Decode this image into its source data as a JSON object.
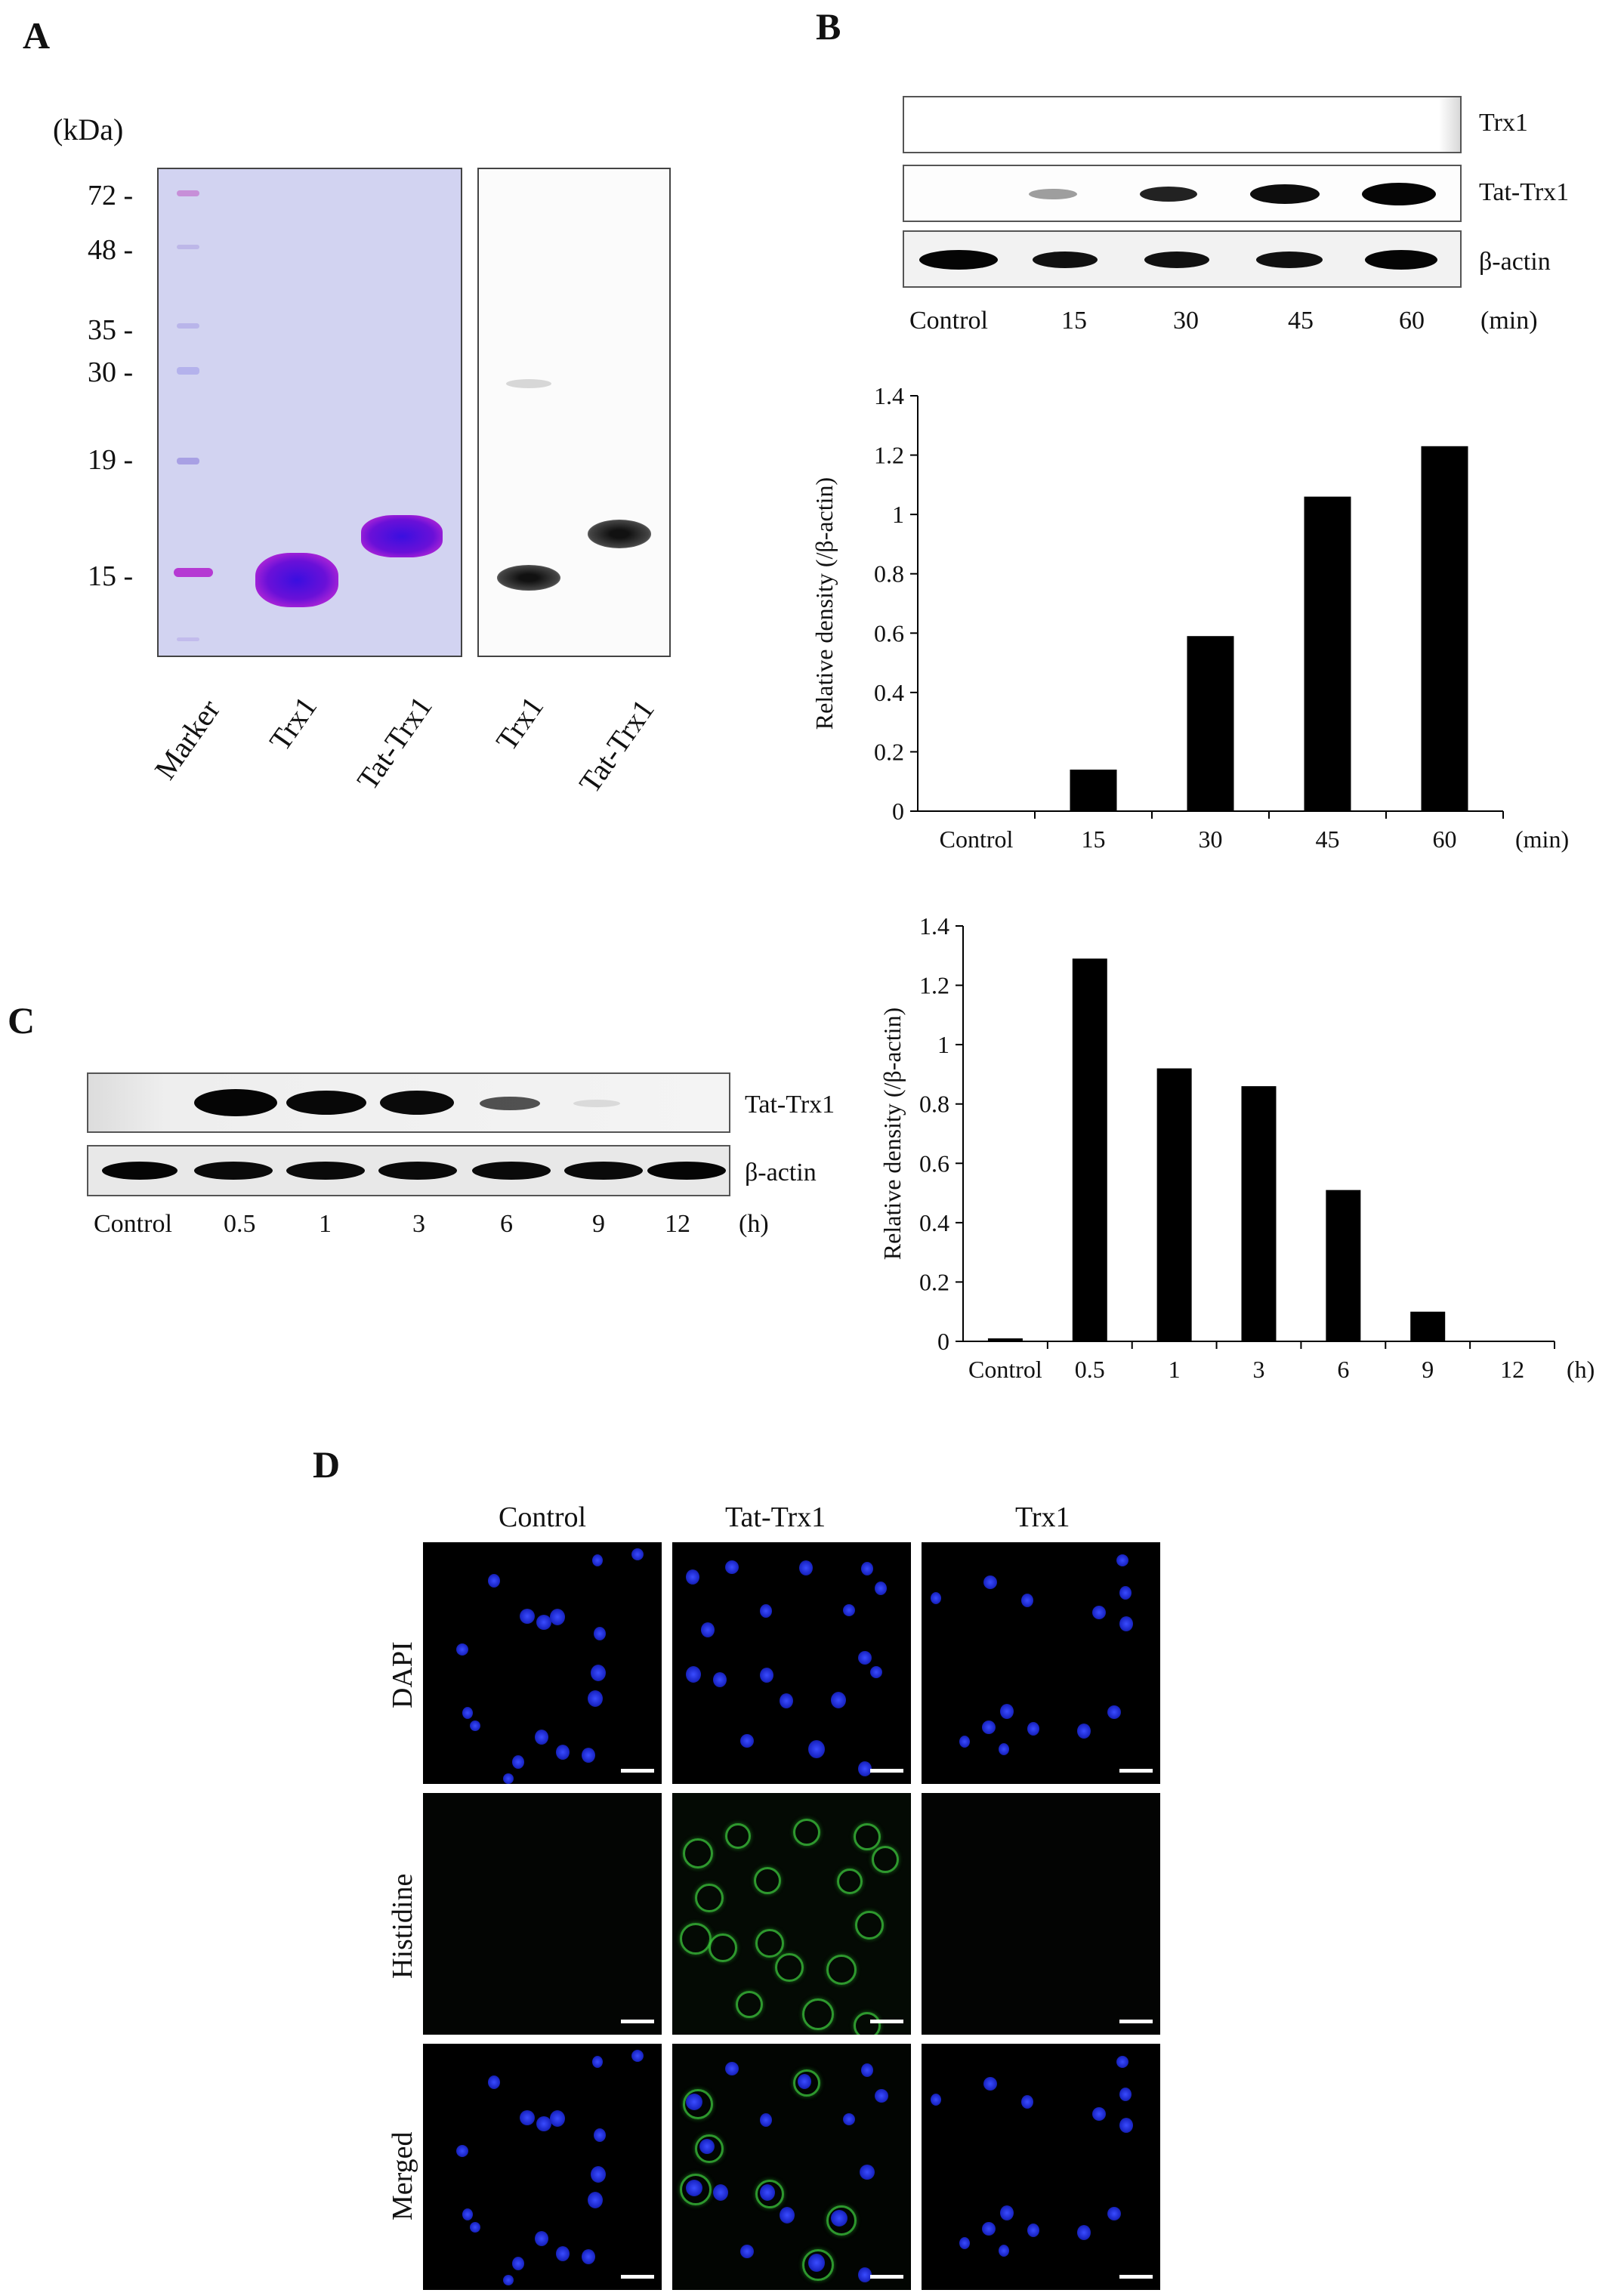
{
  "panels": {
    "a": {
      "letter": "A",
      "kda_label": "(kDa)",
      "markers": [
        "72 -",
        "48 -",
        "35 -",
        "30 -",
        "19 -",
        "15 -"
      ],
      "lane_labels": [
        "Marker",
        "Trx1",
        "Tat-Trx1",
        "Trx1",
        "Tat-Trx1"
      ]
    },
    "b": {
      "letter": "B",
      "blot_rows": [
        "Trx1",
        "Tat-Trx1",
        "β-actin"
      ],
      "lanes": [
        "Control",
        "15",
        "30",
        "45",
        "60"
      ],
      "unit": "(min)"
    },
    "c": {
      "letter": "C",
      "blot_rows": [
        "Tat-Trx1",
        "β-actin"
      ],
      "lanes": [
        "Control",
        "0.5",
        "1",
        "3",
        "6",
        "9",
        "12"
      ],
      "unit": "(h)"
    },
    "d": {
      "letter": "D",
      "columns": [
        "Control",
        "Tat-Trx1",
        "Trx1"
      ],
      "rows": [
        "DAPI",
        "Histidine",
        "Merged"
      ]
    }
  },
  "chart_data": [
    {
      "type": "bar",
      "categories": [
        "Control",
        "15",
        "30",
        "45",
        "60"
      ],
      "values": [
        0.0,
        0.14,
        0.59,
        1.06,
        1.23
      ],
      "xlabel": "(min)",
      "ylabel": "Relative density (/β-actin)",
      "ylim": [
        0,
        1.4
      ],
      "yticks": [
        "0",
        "0.2",
        "0.4",
        "0.6",
        "0.8",
        "1",
        "1.2",
        "1.4"
      ],
      "bar_color": "#000000"
    },
    {
      "type": "bar",
      "categories": [
        "Control",
        "0.5",
        "1",
        "3",
        "6",
        "9",
        "12"
      ],
      "values": [
        0.01,
        1.29,
        0.92,
        0.86,
        0.51,
        0.1,
        0.0
      ],
      "xlabel": "(h)",
      "ylabel": "Relative density (/β-actin)",
      "ylim": [
        0,
        1.4
      ],
      "yticks": [
        "0",
        "0.2",
        "0.4",
        "0.6",
        "0.8",
        "1",
        "1.2",
        "1.4"
      ],
      "bar_color": "#000000"
    }
  ]
}
